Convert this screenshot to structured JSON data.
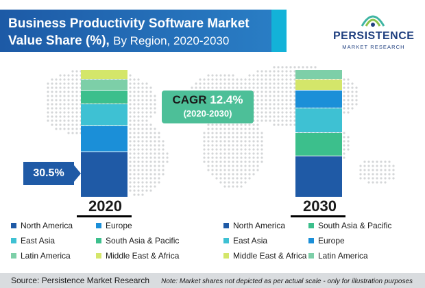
{
  "header": {
    "title_line1": "Business Productivity Software Market",
    "title_line2_bold": "Value Share (%),",
    "title_line2_rest": "By Region, 2020-2030"
  },
  "logo": {
    "name": "PERSISTENCE",
    "tagline": "MARKET RESEARCH"
  },
  "cagr": {
    "label": "CAGR",
    "value": "12.4%",
    "period": "(2020-2030)"
  },
  "callout": {
    "value": "30.5%"
  },
  "footer": {
    "source": "Source: Persistence Market Research",
    "note": "Note: Market shares not depicted as per actual scale - only for illustration purposes"
  },
  "colors": {
    "header": "#1d5aa6",
    "cagr_box": "#4dbf98",
    "callout": "#1f5aa6"
  },
  "chart_data": {
    "type": "bar",
    "stacked": true,
    "categories": [
      "2020",
      "2030"
    ],
    "series": [
      {
        "name": "North America",
        "color": "#1f5aa6",
        "values": [
          30.5,
          null
        ]
      },
      {
        "name": "Europe",
        "color": "#1b8fd8",
        "values": [
          null,
          null
        ]
      },
      {
        "name": "East Asia",
        "color": "#3ec1d3",
        "values": [
          null,
          null
        ]
      },
      {
        "name": "South Asia & Pacific",
        "color": "#3cbf8c",
        "values": [
          null,
          null
        ]
      },
      {
        "name": "Latin America",
        "color": "#7dcfa8",
        "values": [
          null,
          null
        ]
      },
      {
        "name": "Middle East & Africa",
        "color": "#d4e66a",
        "values": [
          null,
          null
        ]
      }
    ],
    "stack_order": {
      "2020": [
        "North America",
        "Europe",
        "East Asia",
        "South Asia & Pacific",
        "Latin America",
        "Middle East & Africa"
      ],
      "2030": [
        "North America",
        "South Asia & Pacific",
        "East Asia",
        "Europe",
        "Middle East & Africa",
        "Latin America"
      ]
    },
    "legends": [
      {
        "for": "2020",
        "entries": [
          "North America",
          "Europe",
          "East Asia",
          "South Asia & Pacific",
          "Latin America",
          "Middle East & Africa"
        ]
      },
      {
        "for": "2030",
        "entries": [
          "North America",
          "South Asia & Pacific",
          "East Asia",
          "Europe",
          "Middle East & Africa",
          "Latin America"
        ]
      }
    ]
  }
}
